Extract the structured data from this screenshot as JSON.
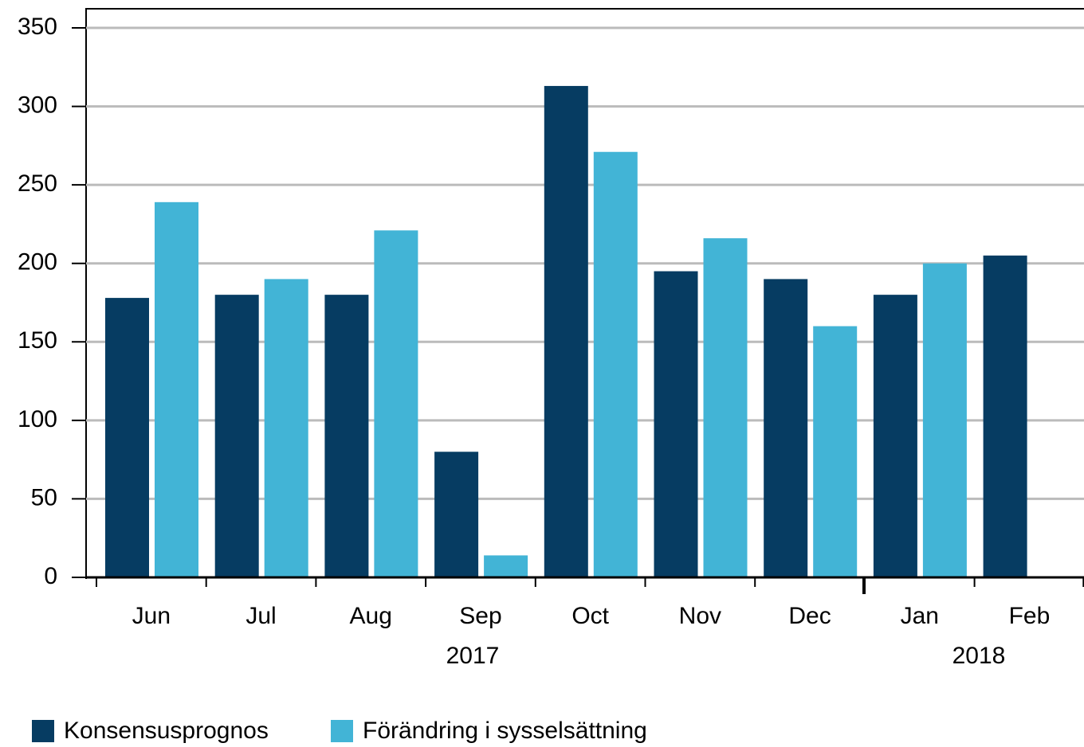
{
  "chart_data": {
    "type": "bar",
    "categories": [
      "Jun",
      "Jul",
      "Aug",
      "Sep",
      "Oct",
      "Nov",
      "Dec",
      "Jan",
      "Feb"
    ],
    "year_labels": [
      "2017",
      "2018"
    ],
    "series": [
      {
        "name": "Konsensusprognos",
        "color": "#063c62",
        "values": [
          178,
          180,
          180,
          80,
          313,
          195,
          190,
          180,
          205
        ]
      },
      {
        "name": "Förändring i sysselsättning",
        "color": "#42b4d6",
        "values": [
          239,
          190,
          221,
          14,
          271,
          216,
          160,
          200,
          null
        ]
      }
    ],
    "ylim": [
      0,
      350
    ],
    "yticks": [
      0,
      50,
      100,
      150,
      200,
      250,
      300,
      350
    ],
    "grid": true,
    "legend": "bottom"
  }
}
